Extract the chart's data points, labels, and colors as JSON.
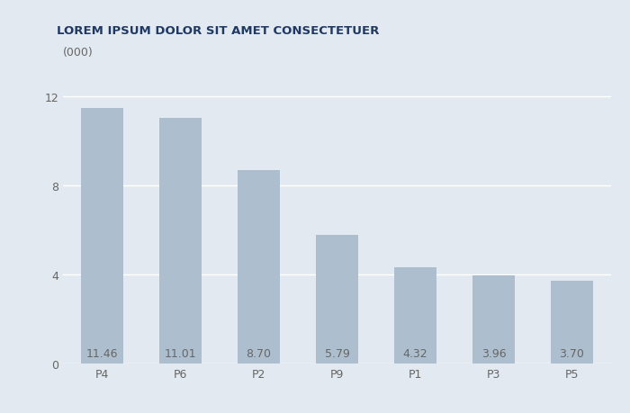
{
  "title": "LOREM IPSUM DOLOR SIT AMET CONSECTETUER",
  "ylabel_annotation": "(000)",
  "categories": [
    "P4",
    "P6",
    "P2",
    "P9",
    "P1",
    "P3",
    "P5"
  ],
  "values": [
    11.46,
    11.01,
    8.7,
    5.79,
    4.32,
    3.96,
    3.7
  ],
  "bar_color": "#adbfcf",
  "background_color": "#e3e9f0",
  "plot_bg_color": "#e3e9f0",
  "title_color": "#1f3864",
  "tick_label_color": "#666666",
  "annotation_color": "#666666",
  "ylabel_annotation_color": "#666666",
  "yticks": [
    0,
    4,
    8,
    12
  ],
  "ylim": [
    0,
    13.2
  ],
  "title_fontsize": 9.5,
  "tick_fontsize": 9,
  "value_label_fontsize": 9,
  "ylabel_annotation_fontsize": 9,
  "bar_width": 0.55,
  "grid_color": "#ffffff",
  "grid_linewidth": 1.0
}
